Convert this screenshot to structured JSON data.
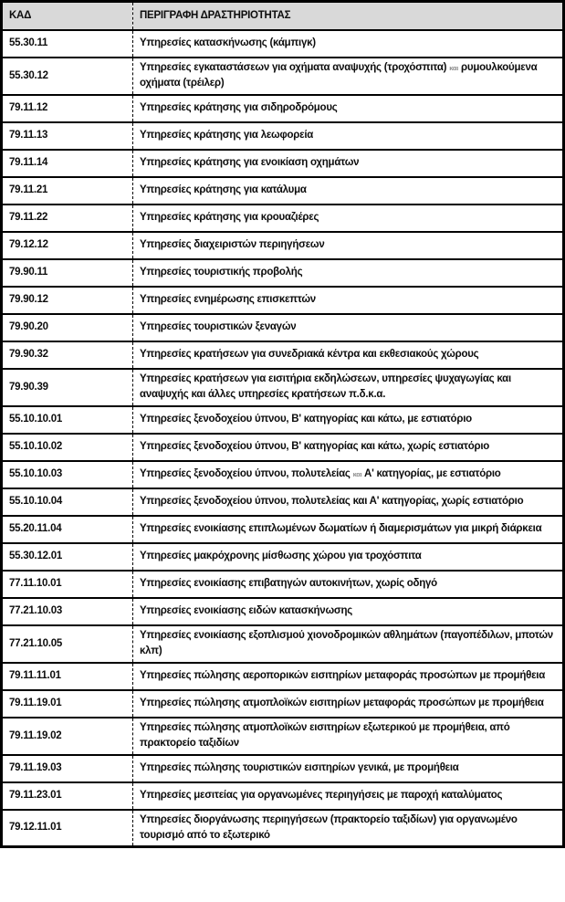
{
  "colors": {
    "header_bg": "#d9d9d9",
    "border": "#000000",
    "text": "#0d0d0d",
    "small_kai_text": "#8c8c8c"
  },
  "table": {
    "columns": [
      {
        "label": "ΚΑΔ"
      },
      {
        "label": "ΠΕΡΙΓΡΑΦΗ ΔΡΑΣΤΗΡΙΟΤΗΤΑΣ"
      }
    ],
    "rows": [
      {
        "code": "55.30.11",
        "desc": [
          {
            "text": "Υπηρεσίες κατασκήνωσης (κάμπιγκ)"
          }
        ]
      },
      {
        "code": "55.30.12",
        "tall": true,
        "desc": [
          {
            "text": "Υπηρεσίες εγκαταστάσεων για οχήματα αναψυχής (τροχόσπιτα) "
          },
          {
            "text": "και",
            "style": "small"
          },
          {
            "text": " ρυμουλκούμενα οχήματα (τρέιλερ)"
          }
        ]
      },
      {
        "code": "79.11.12",
        "desc": [
          {
            "text": "Υπηρεσίες κράτησης για σιδηροδρόμους"
          }
        ]
      },
      {
        "code": "79.11.13",
        "desc": [
          {
            "text": "Υπηρεσίες κράτησης για λεωφορεία"
          }
        ]
      },
      {
        "code": "79.11.14",
        "desc": [
          {
            "text": "Υπηρεσίες κράτησης για ενοικίαση οχημάτων"
          }
        ]
      },
      {
        "code": "79.11.21",
        "desc": [
          {
            "text": "Υπηρεσίες κράτησης για κατάλυμα"
          }
        ]
      },
      {
        "code": "79.11.22",
        "desc": [
          {
            "text": "Υπηρεσίες κράτησης για κρουαζιέρες"
          }
        ]
      },
      {
        "code": "79.12.12",
        "desc": [
          {
            "text": "Υπηρεσίες διαχειριστών περιηγήσεων"
          }
        ]
      },
      {
        "code": "79.90.11",
        "desc": [
          {
            "text": "Υπηρεσίες τουριστικής προβολής"
          }
        ]
      },
      {
        "code": "79.90.12",
        "desc": [
          {
            "text": "Υπηρεσίες ενημέρωσης επισκεπτών"
          }
        ]
      },
      {
        "code": "79.90.20",
        "desc": [
          {
            "text": "Υπηρεσίες τουριστικών ξεναγών"
          }
        ]
      },
      {
        "code": "79.90.32",
        "desc": [
          {
            "text": "Υπηρεσίες κρατήσεων για συνεδριακά κέντρα και εκθεσιακούς χώρους"
          }
        ]
      },
      {
        "code": "79.90.39",
        "tall": true,
        "desc": [
          {
            "text": "Υπηρεσίες κρατήσεων για εισιτήρια εκδηλώσεων, υπηρεσίες ψυχαγωγίας και αναψυχής και άλλες υπηρεσίες κρατήσεων π.δ.κ.α."
          }
        ]
      },
      {
        "code": "55.10.10.01",
        "desc": [
          {
            "text": "Υπηρεσίες ξενοδοχείου ύπνου, Β' κατηγορίας και κάτω, με εστιατόριο"
          }
        ]
      },
      {
        "code": "55.10.10.02",
        "desc": [
          {
            "text": "Υπηρεσίες ξενοδοχείου ύπνου, Β' κατηγορίας και κάτω, χωρίς εστιατόριο"
          }
        ]
      },
      {
        "code": "55.10.10.03",
        "desc": [
          {
            "text": "Υπηρεσίες ξενοδοχείου ύπνου, πολυτελείας "
          },
          {
            "text": "και",
            "style": "small"
          },
          {
            "text": " Α' κατηγορίας, με εστιατόριο"
          }
        ]
      },
      {
        "code": "55.10.10.04",
        "desc": [
          {
            "text": "Υπηρεσίες ξενοδοχείου ύπνου, πολυτελείας και Α' κατηγορίας, χωρίς εστιατόριο"
          }
        ]
      },
      {
        "code": "55.20.11.04",
        "desc": [
          {
            "text": "Υπηρεσίες ενοικίασης επιπλωμένων δωματίων ή διαμερισμάτων για μικρή διάρκεια"
          }
        ]
      },
      {
        "code": "55.30.12.01",
        "desc": [
          {
            "text": "Υπηρεσίες μακρόχρονης μίσθωσης χώρου για τροχόσπιτα"
          }
        ]
      },
      {
        "code": "77.11.10.01",
        "desc": [
          {
            "text": "Υπηρεσίες ενοικίασης επιβατηγών αυτοκινήτων, χωρίς οδηγό"
          }
        ]
      },
      {
        "code": "77.21.10.03",
        "desc": [
          {
            "text": "Υπηρεσίες ενοικίασης ειδών κατασκήνωσης"
          }
        ]
      },
      {
        "code": "77.21.10.05",
        "tall": true,
        "desc": [
          {
            "text": "Υπηρεσίες ενοικίασης εξοπλισμού χιονοδρομικών αθλημάτων (παγοπέδιλων, μποτών κλπ)"
          }
        ]
      },
      {
        "code": "79.11.11.01",
        "desc": [
          {
            "text": "Υπηρεσίες πώλησης αεροπορικών εισιτηρίων μεταφοράς προσώπων με προμήθεια"
          }
        ]
      },
      {
        "code": "79.11.19.01",
        "desc": [
          {
            "text": "Υπηρεσίες πώλησης ατμοπλοϊκών εισιτηρίων μεταφοράς προσώπων με προμήθεια"
          }
        ]
      },
      {
        "code": "79.11.19.02",
        "tall": true,
        "desc": [
          {
            "text": "Υπηρεσίες πώλησης ατμοπλοϊκών εισιτηρίων εξωτερικού με προμήθεια, από πρακτορείο ταξιδίων"
          }
        ]
      },
      {
        "code": "79.11.19.03",
        "desc": [
          {
            "text": "Υπηρεσίες πώλησης τουριστικών εισιτηρίων γενικά, με προμήθεια"
          }
        ]
      },
      {
        "code": "79.11.23.01",
        "desc": [
          {
            "text": "Υπηρεσίες μεσιτείας για οργανωμένες περιηγήσεις με παροχή καταλύματος"
          }
        ]
      },
      {
        "code": "79.12.11.01",
        "tall": true,
        "desc": [
          {
            "text": "Υπηρεσίες διοργάνωσης περιηγήσεων (πρακτορείο ταξιδίων) για οργανωμένο τουρισμό από το εξωτερικό"
          }
        ]
      }
    ]
  }
}
